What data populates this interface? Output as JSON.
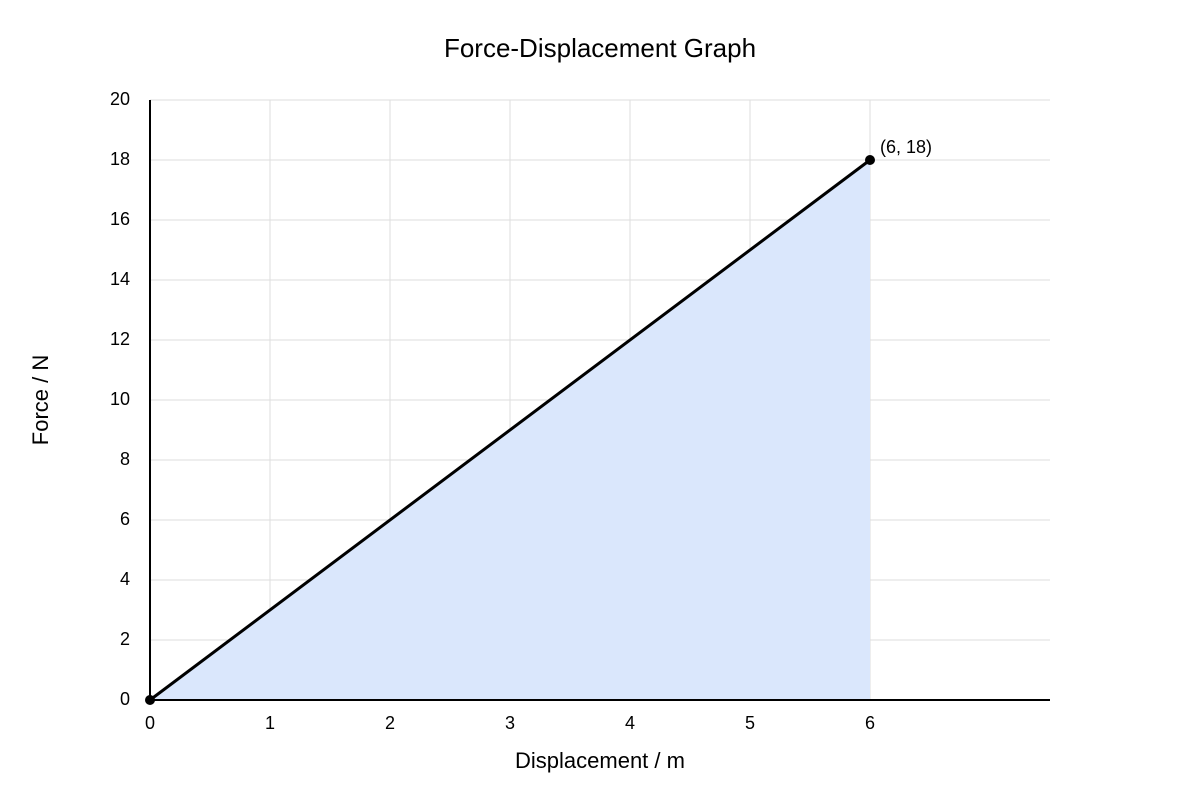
{
  "chart_data": {
    "type": "area-line",
    "title": "Force-Displacement Graph",
    "x_label": "Displacement / m",
    "y_label": "Force / N",
    "x": [
      0,
      6
    ],
    "series": [
      {
        "color": "#000000",
        "fill": "#dae7fc",
        "values": [
          0,
          18
        ]
      }
    ],
    "annotations": [
      {
        "text": "(6, 18)",
        "point": 1
      }
    ],
    "xlim": [
      0,
      7.5
    ],
    "xticks": [
      0,
      1,
      2,
      3,
      4,
      5,
      6
    ],
    "ylim": [
      0,
      20
    ],
    "yticks": [
      0,
      2,
      4,
      6,
      8,
      10,
      12,
      14,
      16,
      18,
      20
    ],
    "grid": true
  }
}
